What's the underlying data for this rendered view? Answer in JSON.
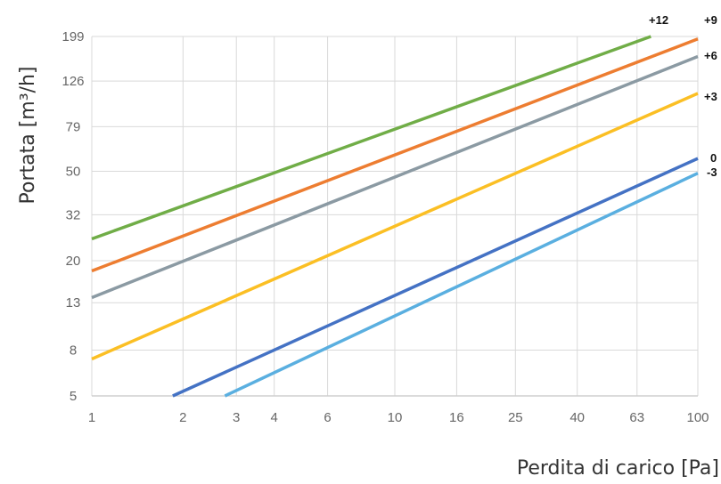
{
  "chart_data": {
    "type": "line",
    "xlabel": "Perdita di carico [Pa]",
    "ylabel": "Portata [m³/h]",
    "x_scale": "log",
    "y_scale": "log",
    "x_ticks": [
      1,
      2,
      3,
      4,
      6,
      10,
      16,
      25,
      40,
      63,
      100
    ],
    "y_ticks": [
      5,
      8,
      13,
      20,
      32,
      50,
      79,
      126,
      199
    ],
    "xlim": [
      1,
      100
    ],
    "ylim": [
      5,
      199
    ],
    "grid": true,
    "series": [
      {
        "name": "+12",
        "color": "#70ad47",
        "x": [
          1,
          70
        ],
        "y": [
          25,
          199
        ]
      },
      {
        "name": "+9",
        "color": "#ed7d31",
        "x": [
          1,
          100
        ],
        "y": [
          18,
          194
        ]
      },
      {
        "name": "+6",
        "color": "#8b9aa3",
        "x": [
          1,
          100
        ],
        "y": [
          13.7,
          162
        ]
      },
      {
        "name": "+3",
        "color": "#fbbf24",
        "x": [
          1,
          100
        ],
        "y": [
          7.3,
          111
        ]
      },
      {
        "name": "0",
        "color": "#4472c4",
        "x": [
          1.85,
          100
        ],
        "y": [
          5,
          57
        ]
      },
      {
        "name": "-3",
        "color": "#5aafe0",
        "x": [
          2.75,
          100
        ],
        "y": [
          5,
          49
        ]
      }
    ]
  }
}
